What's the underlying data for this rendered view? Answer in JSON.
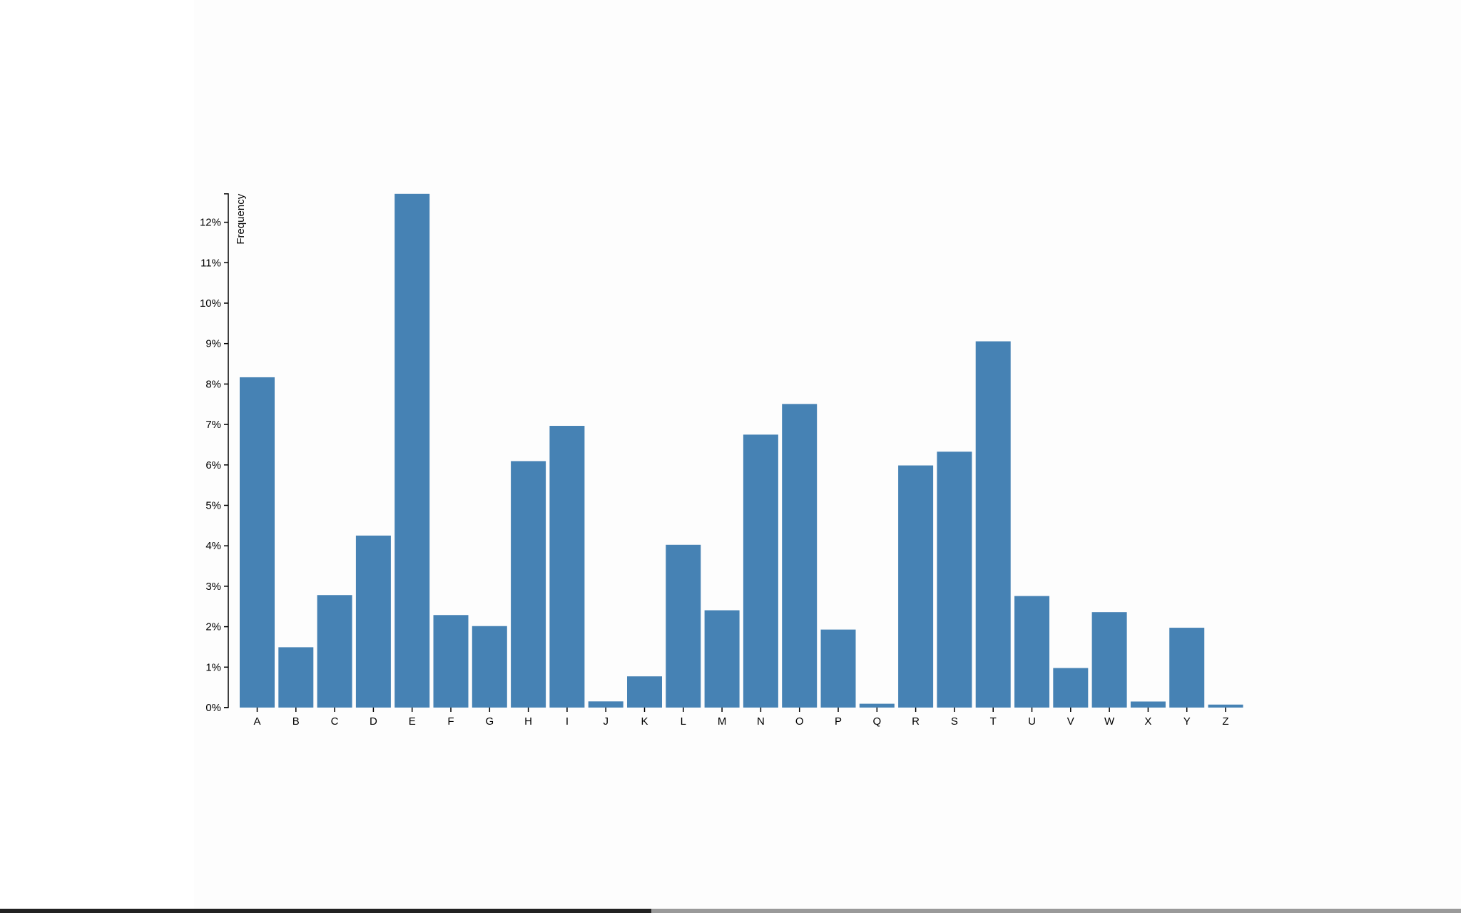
{
  "chart_data": {
    "type": "bar",
    "title": "",
    "xlabel": "",
    "ylabel": "Frequency",
    "categories": [
      "A",
      "B",
      "C",
      "D",
      "E",
      "F",
      "G",
      "H",
      "I",
      "J",
      "K",
      "L",
      "M",
      "N",
      "O",
      "P",
      "Q",
      "R",
      "S",
      "T",
      "U",
      "V",
      "W",
      "X",
      "Y",
      "Z"
    ],
    "values": [
      0.08167,
      0.01492,
      0.02782,
      0.04253,
      0.12702,
      0.02288,
      0.02015,
      0.06094,
      0.06966,
      0.00153,
      0.00772,
      0.04025,
      0.02406,
      0.06749,
      0.07507,
      0.01929,
      0.00095,
      0.05987,
      0.06327,
      0.09056,
      0.02758,
      0.00978,
      0.0236,
      0.0015,
      0.01974,
      0.00074
    ],
    "ylim": [
      0,
      0.12702
    ],
    "yticks": [
      "0%",
      "1%",
      "2%",
      "3%",
      "4%",
      "5%",
      "6%",
      "7%",
      "8%",
      "9%",
      "10%",
      "11%",
      "12%"
    ],
    "grid": false,
    "bar_color": "#4682b4"
  }
}
